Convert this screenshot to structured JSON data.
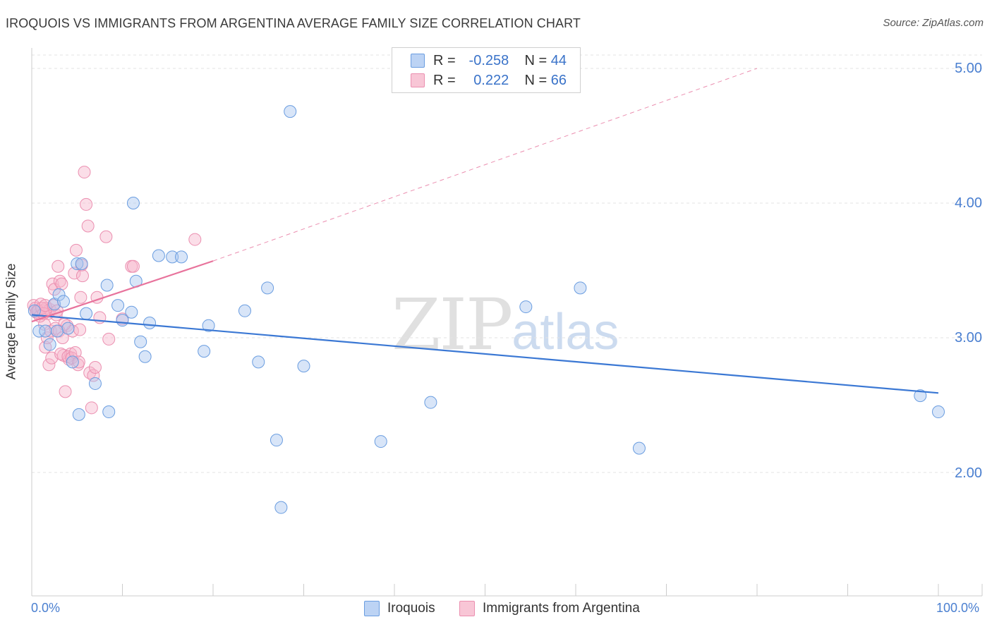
{
  "header": {
    "title": "IROQUOIS VS IMMIGRANTS FROM ARGENTINA AVERAGE FAMILY SIZE CORRELATION CHART",
    "source": "Source: ZipAtlas.com"
  },
  "watermark": {
    "zip": "ZIP",
    "atlas": "atlas"
  },
  "colors": {
    "blue": "#3b78d4",
    "blue_fill": "#a8c6f0",
    "pink": "#e8739c",
    "pink_fill": "#f6b5cb"
  },
  "legend_top": {
    "rows": [
      {
        "r_label": "R =",
        "r_value": "-0.258",
        "n_label": "N =",
        "n_value": "44"
      },
      {
        "r_label": "R =",
        "r_value": "0.222",
        "n_label": "N =",
        "n_value": "66"
      }
    ]
  },
  "chart_data": {
    "type": "scatter",
    "title": "IROQUOIS VS IMMIGRANTS FROM ARGENTINA AVERAGE FAMILY SIZE CORRELATION CHART",
    "xlabel": "",
    "ylabel": "Average Family Size",
    "xlim": [
      0,
      100
    ],
    "ylim": [
      1.0,
      5.05
    ],
    "x_tick_labels": [
      "0.0%",
      "100.0%"
    ],
    "y_ticks": [
      2.0,
      3.0,
      4.0,
      5.0
    ],
    "y_tick_labels": [
      "2.00",
      "3.00",
      "4.00",
      "5.00"
    ],
    "grid": true,
    "legend": [
      "Iroquois",
      "Immigrants from Argentina"
    ],
    "series": [
      {
        "name": "Iroquois",
        "color": "#3b78d4",
        "r": -0.258,
        "n": 44,
        "trend": {
          "x": [
            0,
            100
          ],
          "y": [
            3.17,
            2.59
          ]
        },
        "points": [
          [
            0.3,
            3.2
          ],
          [
            0.8,
            3.05
          ],
          [
            1.5,
            3.05
          ],
          [
            2.0,
            2.95
          ],
          [
            2.5,
            3.25
          ],
          [
            3.0,
            3.32
          ],
          [
            3.5,
            3.27
          ],
          [
            4.0,
            3.07
          ],
          [
            4.5,
            2.82
          ],
          [
            5.0,
            3.55
          ],
          [
            5.2,
            2.43
          ],
          [
            5.5,
            3.55
          ],
          [
            6.0,
            3.18
          ],
          [
            7.0,
            2.66
          ],
          [
            8.3,
            3.39
          ],
          [
            8.5,
            2.45
          ],
          [
            9.5,
            3.24
          ],
          [
            10.0,
            3.13
          ],
          [
            11.0,
            3.19
          ],
          [
            11.2,
            4.0
          ],
          [
            11.5,
            3.42
          ],
          [
            12.0,
            2.97
          ],
          [
            12.5,
            2.86
          ],
          [
            13.0,
            3.11
          ],
          [
            14.0,
            3.61
          ],
          [
            15.5,
            3.6
          ],
          [
            16.5,
            3.6
          ],
          [
            19.0,
            2.9
          ],
          [
            19.5,
            3.09
          ],
          [
            23.5,
            3.2
          ],
          [
            25.0,
            2.82
          ],
          [
            26.0,
            3.37
          ],
          [
            27.0,
            2.24
          ],
          [
            27.5,
            1.74
          ],
          [
            28.5,
            4.68
          ],
          [
            30.0,
            2.79
          ],
          [
            38.5,
            2.23
          ],
          [
            44.0,
            2.52
          ],
          [
            54.5,
            3.23
          ],
          [
            60.5,
            3.37
          ],
          [
            67.0,
            2.18
          ],
          [
            2.8,
            3.05
          ],
          [
            98.0,
            2.57
          ],
          [
            100.0,
            2.45
          ]
        ]
      },
      {
        "name": "Immigrants from Argentina",
        "color": "#e8739c",
        "r": 0.222,
        "n": 66,
        "trend": {
          "x": [
            0,
            20
          ],
          "y": [
            3.12,
            3.57
          ],
          "dashed_extension": {
            "x": [
              20,
              80
            ],
            "y": [
              3.57,
              5.0
            ]
          }
        },
        "points": [
          [
            0.2,
            3.24
          ],
          [
            0.4,
            3.22
          ],
          [
            0.6,
            3.2
          ],
          [
            0.8,
            3.18
          ],
          [
            1.0,
            3.25
          ],
          [
            1.2,
            3.2
          ],
          [
            1.4,
            3.1
          ],
          [
            1.6,
            3.22
          ],
          [
            1.8,
            3.18
          ],
          [
            2.0,
            3.21
          ],
          [
            1.5,
            2.93
          ],
          [
            1.7,
            3.0
          ],
          [
            1.9,
            2.8
          ],
          [
            2.1,
            3.05
          ],
          [
            2.3,
            3.4
          ],
          [
            2.5,
            3.36
          ],
          [
            2.7,
            3.17
          ],
          [
            2.9,
            3.53
          ],
          [
            3.1,
            3.42
          ],
          [
            3.3,
            3.4
          ],
          [
            3.5,
            2.87
          ],
          [
            3.7,
            2.6
          ],
          [
            3.9,
            3.09
          ],
          [
            4.1,
            2.84
          ],
          [
            4.3,
            2.88
          ],
          [
            4.5,
            3.05
          ],
          [
            4.7,
            3.48
          ],
          [
            4.9,
            3.65
          ],
          [
            5.1,
            2.8
          ],
          [
            5.3,
            3.06
          ],
          [
            5.5,
            3.54
          ],
          [
            5.6,
            3.46
          ],
          [
            5.8,
            4.23
          ],
          [
            6.0,
            3.99
          ],
          [
            6.2,
            3.83
          ],
          [
            6.4,
            2.74
          ],
          [
            6.6,
            2.48
          ],
          [
            6.8,
            2.72
          ],
          [
            7.0,
            2.78
          ],
          [
            7.2,
            3.3
          ],
          [
            7.5,
            3.15
          ],
          [
            8.2,
            3.75
          ],
          [
            8.5,
            2.99
          ],
          [
            10.0,
            3.14
          ],
          [
            11.0,
            3.53
          ],
          [
            11.2,
            3.53
          ],
          [
            18.0,
            3.73
          ],
          [
            2.2,
            2.85
          ],
          [
            2.6,
            3.07
          ],
          [
            3.2,
            2.88
          ],
          [
            3.6,
            3.1
          ],
          [
            4.0,
            2.86
          ],
          [
            4.4,
            2.85
          ],
          [
            4.8,
            2.89
          ],
          [
            5.2,
            2.82
          ],
          [
            5.4,
            3.3
          ],
          [
            0.5,
            3.19
          ],
          [
            0.7,
            3.2
          ],
          [
            0.9,
            3.16
          ],
          [
            1.1,
            3.22
          ],
          [
            1.3,
            3.18
          ],
          [
            1.5,
            3.24
          ],
          [
            2.4,
            3.24
          ],
          [
            2.8,
            3.2
          ],
          [
            3.0,
            3.05
          ],
          [
            3.4,
            3.0
          ]
        ]
      }
    ]
  },
  "bottom_legend": {
    "items": [
      {
        "label": "Iroquois"
      },
      {
        "label": "Immigrants from Argentina"
      }
    ]
  }
}
